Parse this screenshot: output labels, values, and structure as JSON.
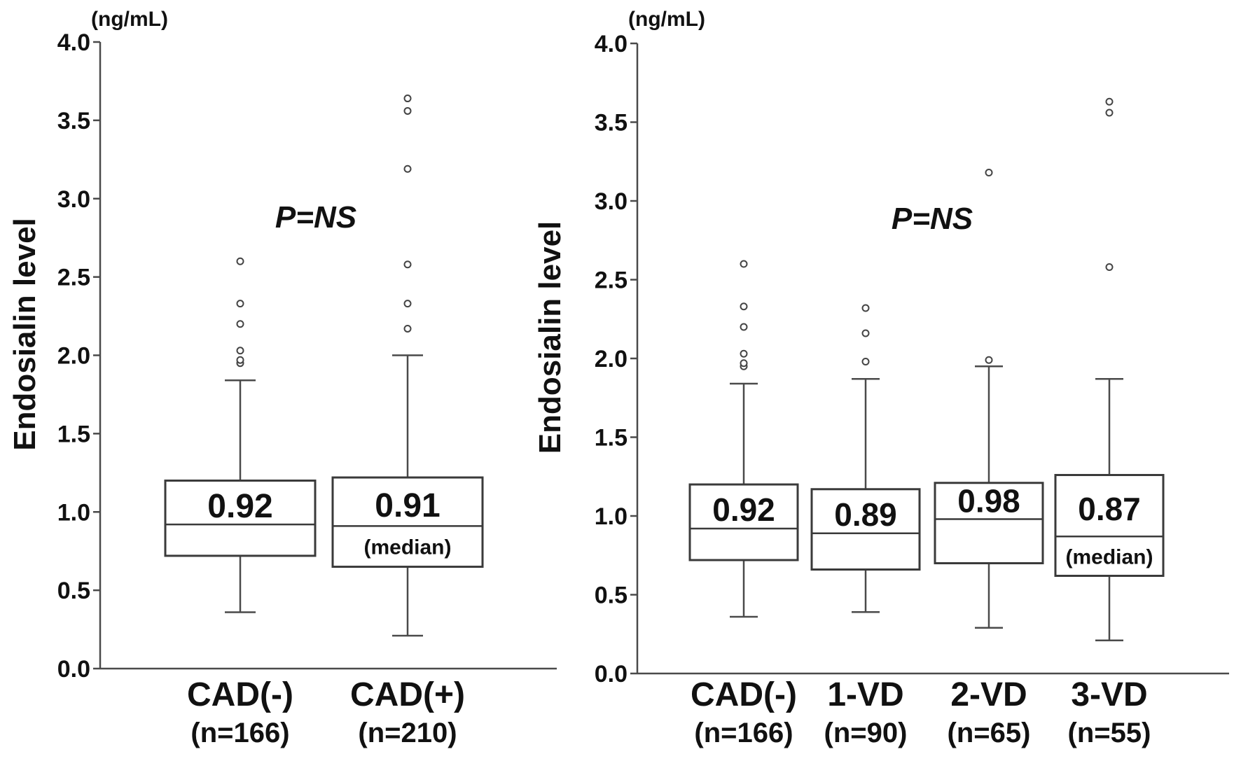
{
  "chart_data": [
    {
      "type": "boxplot",
      "ylabel": "Endosialin level",
      "unit": "(ng/mL)",
      "ylim": [
        0,
        4
      ],
      "yticks": [
        "0.0",
        "0.5",
        "1.0",
        "1.5",
        "2.0",
        "2.5",
        "3.0",
        "3.5",
        "4.0"
      ],
      "annotation": "P=NS",
      "groups": [
        {
          "label": "CAD(-)",
          "n_label": "(n=166)",
          "median_label": "0.92",
          "median_note": "",
          "whisker_low": 0.36,
          "q1": 0.72,
          "median": 0.92,
          "q3": 1.2,
          "whisker_high": 1.84,
          "outliers": [
            1.95,
            1.97,
            2.03,
            2.2,
            2.33,
            2.6
          ]
        },
        {
          "label": "CAD(+)",
          "n_label": "(n=210)",
          "median_label": "0.91",
          "median_note": "(median)",
          "whisker_low": 0.21,
          "q1": 0.65,
          "median": 0.91,
          "q3": 1.22,
          "whisker_high": 2.0,
          "outliers": [
            2.17,
            2.33,
            2.58,
            3.19,
            3.56,
            3.64
          ]
        }
      ]
    },
    {
      "type": "boxplot",
      "ylabel": "Endosialin level",
      "unit": "(ng/mL)",
      "ylim": [
        0,
        4
      ],
      "yticks": [
        "0.0",
        "0.5",
        "1.0",
        "1.5",
        "2.0",
        "2.5",
        "3.0",
        "3.5",
        "4.0"
      ],
      "annotation": "P=NS",
      "groups": [
        {
          "label": "CAD(-)",
          "n_label": "(n=166)",
          "median_label": "0.92",
          "median_note": "",
          "whisker_low": 0.36,
          "q1": 0.72,
          "median": 0.92,
          "q3": 1.2,
          "whisker_high": 1.84,
          "outliers": [
            1.95,
            1.97,
            2.03,
            2.2,
            2.33,
            2.6
          ]
        },
        {
          "label": "1-VD",
          "n_label": "(n=90)",
          "median_label": "0.89",
          "median_note": "",
          "whisker_low": 0.39,
          "q1": 0.66,
          "median": 0.89,
          "q3": 1.17,
          "whisker_high": 1.87,
          "outliers": [
            1.98,
            2.16,
            2.32
          ]
        },
        {
          "label": "2-VD",
          "n_label": "(n=65)",
          "median_label": "0.98",
          "median_note": "",
          "whisker_low": 0.29,
          "q1": 0.7,
          "median": 0.98,
          "q3": 1.21,
          "whisker_high": 1.95,
          "outliers": [
            1.99,
            3.18
          ]
        },
        {
          "label": "3-VD",
          "n_label": "(n=55)",
          "median_label": "0.87",
          "median_note": "(median)",
          "whisker_low": 0.21,
          "q1": 0.62,
          "median": 0.87,
          "q3": 1.26,
          "whisker_high": 1.87,
          "outliers": [
            2.58,
            3.56,
            3.63
          ]
        }
      ]
    }
  ]
}
